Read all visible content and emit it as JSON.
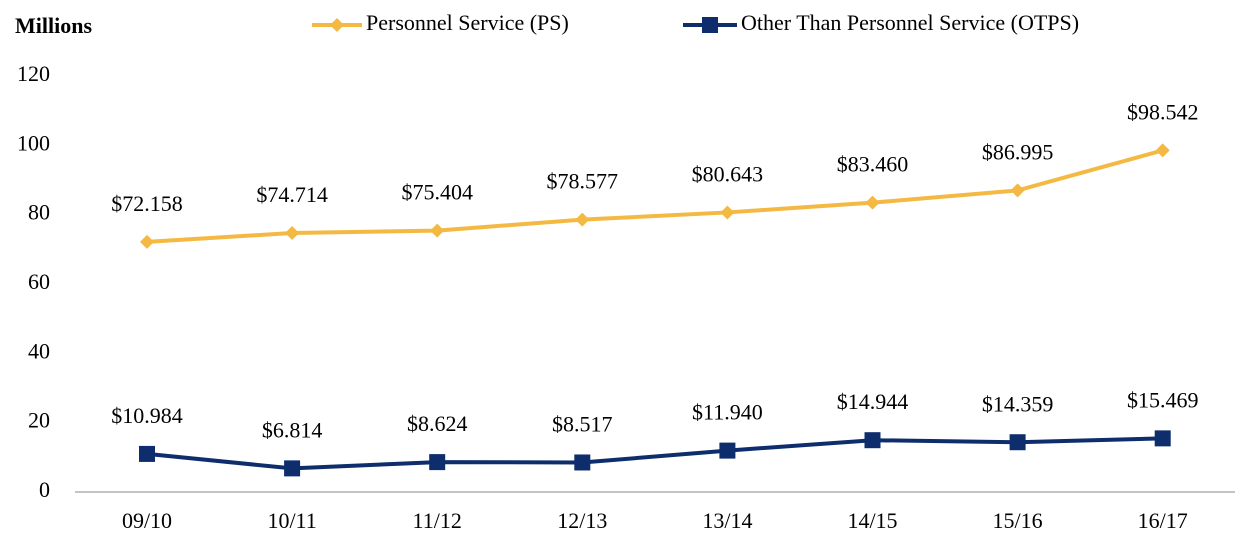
{
  "chart_data": {
    "type": "line",
    "y_label": "Millions",
    "categories": [
      "09/10",
      "10/11",
      "11/12",
      "12/13",
      "13/14",
      "14/15",
      "15/16",
      "16/17"
    ],
    "series": [
      {
        "name": "Personnel Service (PS)",
        "color": "#f4b942",
        "marker": "diamond",
        "values": [
          72.158,
          74.714,
          75.404,
          78.577,
          80.643,
          83.46,
          86.995,
          98.542
        ],
        "value_labels": [
          "$72.158",
          "$74.714",
          "$75.404",
          "$78.577",
          "$80.643",
          "$83.460",
          "$86.995",
          "$98.542"
        ]
      },
      {
        "name": "Other Than Personnel Service (OTPS)",
        "color": "#0d2d6c",
        "marker": "square",
        "values": [
          10.984,
          6.814,
          8.624,
          8.517,
          11.94,
          14.944,
          14.359,
          15.469
        ],
        "value_labels": [
          "$10.984",
          "$6.814",
          "$8.624",
          "$8.517",
          "$11.940",
          "$14.944",
          "$14.359",
          "$15.469"
        ]
      }
    ],
    "ylim": [
      0,
      120
    ],
    "yticks": [
      0,
      20,
      40,
      60,
      80,
      100,
      120
    ],
    "grid": false,
    "legend": "top"
  }
}
